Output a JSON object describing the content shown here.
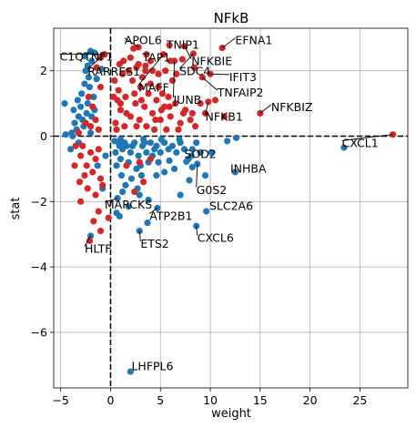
{
  "chart_data": {
    "type": "scatter",
    "title": "NFkB",
    "xlabel": "weight",
    "ylabel": "stat",
    "xlim": [
      -5.7,
      29.8
    ],
    "ylim": [
      -7.7,
      3.3
    ],
    "xticks": [
      -5,
      0,
      5,
      10,
      15,
      20,
      25
    ],
    "yticks": [
      -6,
      -4,
      -2,
      0,
      2
    ],
    "grid": true,
    "zero_lines": {
      "x": 0,
      "y": 0
    },
    "colors": {
      "up": "#d62728",
      "down": "#1f77b4"
    },
    "points_up": [
      [
        -2.0,
        0.3
      ],
      [
        -1.5,
        0.5
      ],
      [
        -1.2,
        0.2
      ],
      [
        -2.5,
        0.4
      ],
      [
        -1.8,
        0.9
      ],
      [
        -2.2,
        1.2
      ],
      [
        -1.0,
        1.5
      ],
      [
        -1.4,
        2.1
      ],
      [
        -0.6,
        2.5
      ],
      [
        -1.0,
        2.4
      ],
      [
        -2.8,
        -0.3
      ],
      [
        -2.0,
        -0.5
      ],
      [
        -1.5,
        -0.7
      ],
      [
        -1.2,
        -0.4
      ],
      [
        -2.4,
        -0.9
      ],
      [
        -1.8,
        -1.1
      ],
      [
        -1.0,
        -1.3
      ],
      [
        -2.3,
        -1.6
      ],
      [
        -1.5,
        -1.8
      ],
      [
        -0.8,
        -1.5
      ],
      [
        -1.2,
        -2.3
      ],
      [
        -1.7,
        -2.6
      ],
      [
        -1.0,
        -2.9
      ],
      [
        -2.1,
        -3.2
      ],
      [
        -3.5,
        -0.3
      ],
      [
        -3.0,
        -0.6
      ],
      [
        -3.2,
        0.1
      ],
      [
        -3.6,
        -0.9
      ],
      [
        -3.1,
        -1.4
      ],
      [
        -2.6,
        -1.2
      ],
      [
        -3.0,
        -2.0
      ],
      [
        0.5,
        0.4
      ],
      [
        1.0,
        0.8
      ],
      [
        1.5,
        1.2
      ],
      [
        2.0,
        0.6
      ],
      [
        2.5,
        1.0
      ],
      [
        3.0,
        1.5
      ],
      [
        1.2,
        1.9
      ],
      [
        0.8,
        1.4
      ],
      [
        1.8,
        2.0
      ],
      [
        2.2,
        1.7
      ],
      [
        2.8,
        2.2
      ],
      [
        3.4,
        0.9
      ],
      [
        3.8,
        1.3
      ],
      [
        4.2,
        0.7
      ],
      [
        4.6,
        1.1
      ],
      [
        5.0,
        0.5
      ],
      [
        5.4,
        0.9
      ],
      [
        6.0,
        0.6
      ],
      [
        6.5,
        1.0
      ],
      [
        7.0,
        0.4
      ],
      [
        7.5,
        0.8
      ],
      [
        8.0,
        0.5
      ],
      [
        8.5,
        0.3
      ],
      [
        0.6,
        0.2
      ],
      [
        1.4,
        0.3
      ],
      [
        2.6,
        0.3
      ],
      [
        3.6,
        0.3
      ],
      [
        4.4,
        0.2
      ],
      [
        5.6,
        0.2
      ],
      [
        6.8,
        0.2
      ],
      [
        1.0,
        1.0
      ],
      [
        1.6,
        0.7
      ],
      [
        2.4,
        1.3
      ],
      [
        3.2,
        1.8
      ],
      [
        4.0,
        1.6
      ],
      [
        4.8,
        1.5
      ],
      [
        5.2,
        1.3
      ],
      [
        5.8,
        1.2
      ],
      [
        6.2,
        1.7
      ],
      [
        0.9,
        2.2
      ],
      [
        1.3,
        2.3
      ],
      [
        2.0,
        2.4
      ],
      [
        2.6,
        2.1
      ],
      [
        3.5,
        2.0
      ],
      [
        4.2,
        2.0
      ],
      [
        4.8,
        1.9
      ],
      [
        5.5,
        2.0
      ],
      [
        6.0,
        2.3
      ],
      [
        6.6,
        1.9
      ],
      [
        0.4,
        1.7
      ],
      [
        0.7,
        1.1
      ],
      [
        2.9,
        0.5
      ],
      [
        3.1,
        1.1
      ],
      [
        4.5,
        0.5
      ],
      [
        5.1,
        0.8
      ],
      [
        5.9,
        0.9
      ],
      [
        7.3,
        0.7
      ],
      [
        8.2,
        0.7
      ],
      [
        2.8,
        2.72
      ],
      [
        2.3,
        2.68
      ],
      [
        3.6,
        2.5
      ],
      [
        4.0,
        2.3
      ],
      [
        5.3,
        2.5
      ],
      [
        6.4,
        2.3
      ],
      [
        7.2,
        2.35
      ],
      [
        8.4,
        2.1
      ],
      [
        9.2,
        1.8
      ],
      [
        10.5,
        1.1
      ],
      [
        11.4,
        0.6
      ],
      [
        9.0,
        1.0
      ],
      [
        9.5,
        0.7
      ],
      [
        3.5,
        2.15
      ],
      [
        5.9,
        2.78
      ],
      [
        7.4,
        2.75
      ],
      [
        8.3,
        2.52
      ],
      [
        11.2,
        2.7
      ],
      [
        10.0,
        1.9
      ],
      [
        9.8,
        1.05
      ],
      [
        15.0,
        0.7
      ],
      [
        28.3,
        0.05
      ],
      [
        1.6,
        -0.9
      ],
      [
        2.4,
        -1.7
      ],
      [
        2.9,
        -0.8
      ],
      [
        3.3,
        -1.4
      ],
      [
        4.0,
        -0.7
      ],
      [
        -0.2,
        -2.5
      ],
      [
        0.3,
        1.2
      ]
    ],
    "points_down": [
      [
        -2.0,
        2.6
      ],
      [
        -1.6,
        2.55
      ],
      [
        -2.5,
        2.0
      ],
      [
        -2.2,
        1.8
      ],
      [
        -1.4,
        1.75
      ],
      [
        -2.9,
        1.3
      ],
      [
        -2.3,
        1.0
      ],
      [
        -1.6,
        0.8
      ],
      [
        -3.2,
        0.6
      ],
      [
        -2.7,
        0.3
      ],
      [
        -2.1,
        1.5
      ],
      [
        -2.6,
        1.6
      ],
      [
        -3.0,
        0.9
      ],
      [
        -3.6,
        0.4
      ],
      [
        -1.9,
        0.6
      ],
      [
        -2.4,
        0.7
      ],
      [
        -3.3,
        1.1
      ],
      [
        -1.7,
        1.2
      ],
      [
        -2.8,
        0.5
      ],
      [
        -3.9,
        0.1
      ],
      [
        -4.5,
        0.05
      ],
      [
        -2.0,
        0.1
      ],
      [
        -0.9,
        2.05
      ],
      [
        -2.6,
        2.45
      ],
      [
        -3.2,
        -0.2
      ],
      [
        -3.4,
        0.2
      ],
      [
        -4.0,
        -0.4
      ],
      [
        -3.8,
        0.0
      ],
      [
        -4.6,
        1.0
      ],
      [
        -3.7,
        0.8
      ],
      [
        -2.3,
        2.15
      ],
      [
        -1.9,
        2.3
      ],
      [
        0.8,
        -0.2
      ],
      [
        1.2,
        -0.4
      ],
      [
        1.6,
        -0.3
      ],
      [
        2.0,
        -0.5
      ],
      [
        2.4,
        -0.2
      ],
      [
        2.8,
        -0.6
      ],
      [
        3.2,
        -0.3
      ],
      [
        3.6,
        -0.5
      ],
      [
        4.0,
        -0.2
      ],
      [
        4.4,
        -0.4
      ],
      [
        0.5,
        -0.5
      ],
      [
        1.0,
        -0.7
      ],
      [
        1.4,
        -0.2
      ],
      [
        1.8,
        -0.8
      ],
      [
        2.2,
        -0.3
      ],
      [
        2.6,
        -1.0
      ],
      [
        3.0,
        -0.9
      ],
      [
        3.4,
        -0.2
      ],
      [
        3.8,
        -0.8
      ],
      [
        4.2,
        -0.6
      ],
      [
        4.6,
        -0.3
      ],
      [
        5.0,
        -0.5
      ],
      [
        5.4,
        -0.2
      ],
      [
        5.8,
        -0.4
      ],
      [
        6.2,
        -0.3
      ],
      [
        6.6,
        -0.5
      ],
      [
        7.0,
        -0.2
      ],
      [
        7.4,
        -0.4
      ],
      [
        7.8,
        -0.7
      ],
      [
        8.2,
        -0.4
      ],
      [
        8.6,
        -0.2
      ],
      [
        9.0,
        -0.5
      ],
      [
        0.6,
        -0.9
      ],
      [
        1.1,
        -1.2
      ],
      [
        1.5,
        -1.5
      ],
      [
        2.1,
        -1.3
      ],
      [
        2.7,
        -1.6
      ],
      [
        3.1,
        -1.2
      ],
      [
        0.4,
        -0.15
      ],
      [
        0.9,
        -0.3
      ],
      [
        2.9,
        -1.8
      ],
      [
        4.6,
        -1.2
      ],
      [
        5.4,
        -1.1
      ],
      [
        6.4,
        -1.0
      ],
      [
        7.6,
        -0.78
      ],
      [
        8.1,
        -0.6
      ],
      [
        10.1,
        -0.5
      ],
      [
        11.7,
        -0.15
      ],
      [
        0.7,
        -1.9
      ],
      [
        1.2,
        -1.7
      ],
      [
        1.8,
        -2.15
      ],
      [
        3.8,
        -1.95
      ],
      [
        0.6,
        -2.35
      ],
      [
        -0.8,
        -1.6
      ],
      [
        -1.3,
        -0.9
      ],
      [
        -0.5,
        -0.6
      ],
      [
        8.7,
        -0.85
      ],
      [
        9.5,
        -1.2
      ],
      [
        7.0,
        -1.8
      ],
      [
        12.5,
        -1.1
      ],
      [
        7.9,
        -1.35
      ],
      [
        8.2,
        -0.95
      ],
      [
        12.6,
        -0.05
      ],
      [
        23.4,
        -0.35
      ],
      [
        4.7,
        -2.2
      ],
      [
        3.7,
        -2.65
      ],
      [
        2.9,
        -2.9
      ],
      [
        9.6,
        -2.3
      ],
      [
        8.6,
        -2.75
      ],
      [
        0.9,
        -2.45
      ],
      [
        -2.0,
        -3.05
      ],
      [
        2.0,
        -7.2
      ],
      [
        1.0,
        -0.1
      ],
      [
        3.3,
        -0.1
      ],
      [
        5.1,
        -0.1
      ],
      [
        6.9,
        -0.1
      ],
      [
        4.8,
        -0.8
      ],
      [
        5.9,
        -0.75
      ]
    ],
    "annotations": [
      {
        "label": "EFNA1",
        "point": [
          11.2,
          2.7
        ],
        "text": [
          12.5,
          2.92
        ]
      },
      {
        "label": "TNIP1",
        "point": [
          5.9,
          2.78
        ],
        "text": [
          5.6,
          2.78
        ]
      },
      {
        "label": "APOL6",
        "point": [
          2.8,
          2.72
        ],
        "text": [
          1.4,
          2.92
        ]
      },
      {
        "label": "C1QTNF1",
        "point": [
          -0.6,
          2.5
        ],
        "text": [
          -5.1,
          2.42
        ]
      },
      {
        "label": "TAP1",
        "point": [
          3.5,
          2.15
        ],
        "text": [
          3.2,
          2.4
        ]
      },
      {
        "label": "NFKBIE",
        "point": [
          7.4,
          2.75
        ],
        "text": [
          8.1,
          2.28
        ]
      },
      {
        "label": "RARRES1",
        "point": [
          -1.0,
          2.4
        ],
        "text": [
          -2.3,
          1.97
        ]
      },
      {
        "label": "SDC4",
        "point": [
          8.3,
          2.52
        ],
        "text": [
          6.9,
          1.98
        ]
      },
      {
        "label": "IFIT3",
        "point": [
          10.0,
          1.9
        ],
        "text": [
          11.9,
          1.8
        ]
      },
      {
        "label": "MAFF",
        "point": [
          5.3,
          2.5
        ],
        "text": [
          2.8,
          1.48
        ]
      },
      {
        "label": "TNFAIP2",
        "point": [
          9.2,
          1.8
        ],
        "text": [
          10.7,
          1.32
        ]
      },
      {
        "label": "JUNB",
        "point": [
          6.4,
          2.3
        ],
        "text": [
          6.3,
          1.1
        ]
      },
      {
        "label": "NFKBIZ",
        "point": [
          15.0,
          0.7
        ],
        "text": [
          16.1,
          0.88
        ]
      },
      {
        "label": "NFKB1",
        "point": [
          9.8,
          1.05
        ],
        "text": [
          9.5,
          0.58
        ]
      },
      {
        "label": "CXCL1",
        "point": [
          28.3,
          0.05
        ],
        "text": [
          23.2,
          -0.22
        ]
      },
      {
        "label": "SOD2",
        "point": [
          7.6,
          -0.78
        ],
        "text": [
          7.4,
          -0.55
        ]
      },
      {
        "label": "INHBA",
        "point": [
          12.5,
          -1.1
        ],
        "text": [
          12.0,
          -1.0
        ]
      },
      {
        "label": "G0S2",
        "point": [
          8.7,
          -0.85
        ],
        "text": [
          8.6,
          -1.65
        ]
      },
      {
        "label": "MARCKS",
        "point": [
          0.7,
          -1.9
        ],
        "text": [
          -0.6,
          -2.1
        ]
      },
      {
        "label": "SLC2A6",
        "point": [
          9.6,
          -2.3
        ],
        "text": [
          9.9,
          -2.15
        ]
      },
      {
        "label": "ATP2B1",
        "point": [
          4.7,
          -2.2
        ],
        "text": [
          3.9,
          -2.45
        ]
      },
      {
        "label": "CXCL6",
        "point": [
          8.6,
          -2.75
        ],
        "text": [
          8.7,
          -3.12
        ]
      },
      {
        "label": "ETS2",
        "point": [
          2.9,
          -2.9
        ],
        "text": [
          3.0,
          -3.3
        ]
      },
      {
        "label": "HLTF",
        "point": [
          -2.0,
          -3.05
        ],
        "text": [
          -2.6,
          -3.45
        ]
      },
      {
        "label": "LHFPL6",
        "point": [
          2.0,
          -7.2
        ],
        "text": [
          2.1,
          -7.05
        ]
      }
    ]
  }
}
